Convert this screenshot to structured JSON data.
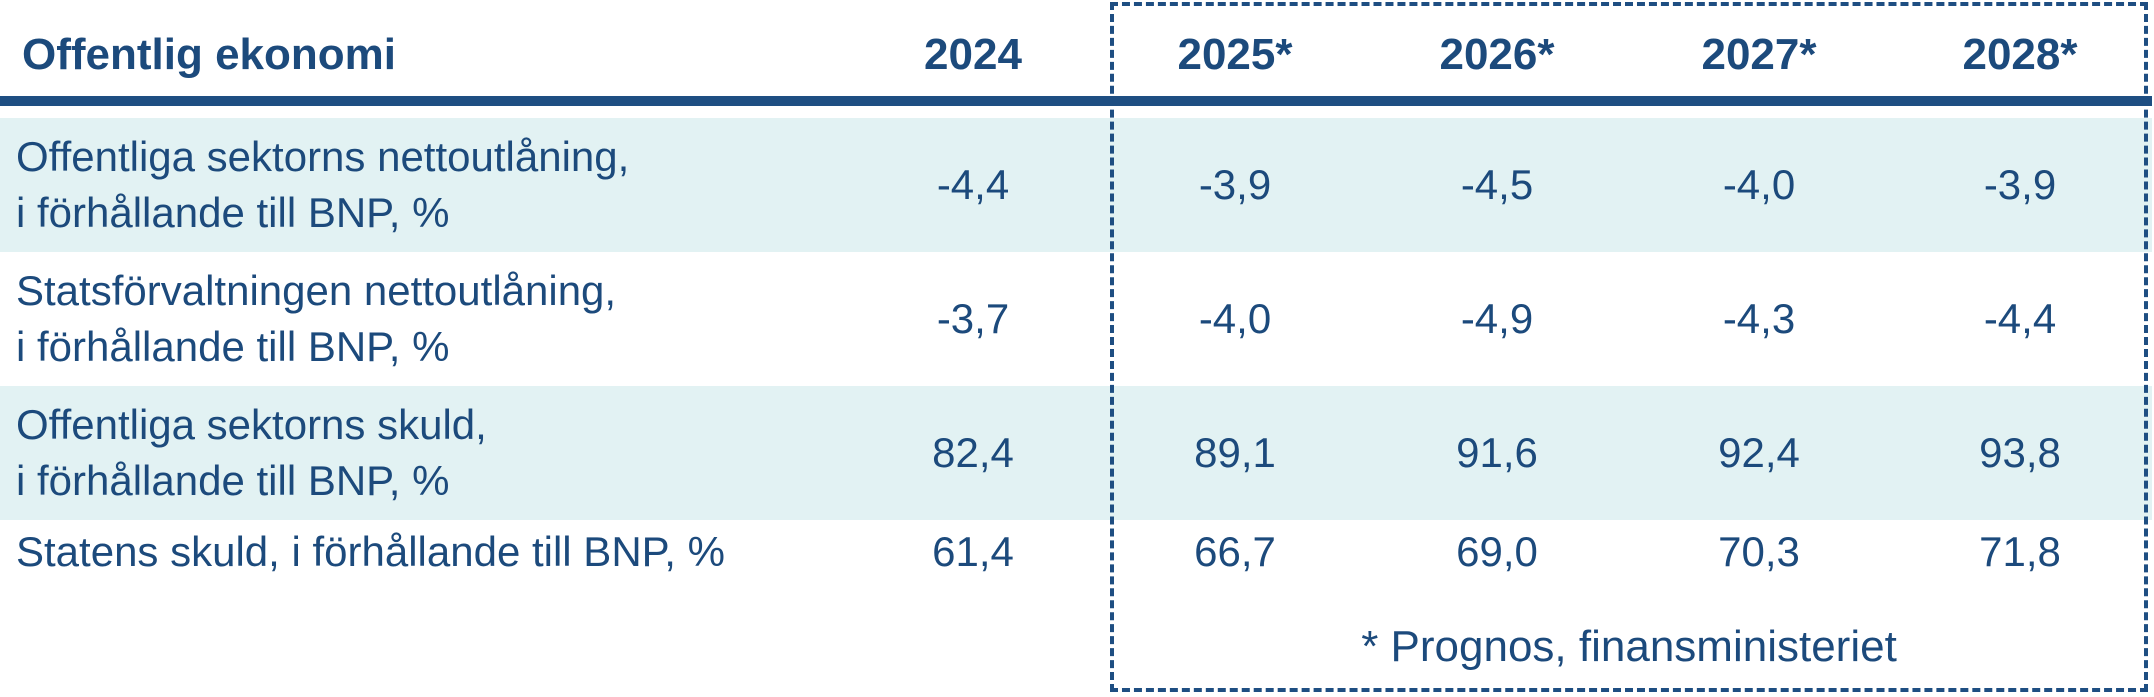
{
  "chart_data": {
    "type": "table",
    "title": "Offentlig ekonomi",
    "columns": [
      "2024",
      "2025*",
      "2026*",
      "2027*",
      "2028*"
    ],
    "rows": [
      {
        "label": "Offentliga sektorns nettoutlåning,\ni förhållande till BNP, %",
        "values": [
          "-4,4",
          "-3,9",
          "-4,5",
          "-4,0",
          "-3,9"
        ]
      },
      {
        "label": "Statsförvaltningen nettoutlåning,\ni förhållande till BNP, %",
        "values": [
          "-3,7",
          "-4,0",
          "-4,9",
          "-4,3",
          "-4,4"
        ]
      },
      {
        "label": "Offentliga sektorns skuld,\ni förhållande till BNP, %",
        "values": [
          "82,4",
          "89,1",
          "91,6",
          "92,4",
          "93,8"
        ]
      },
      {
        "label": "Statens skuld, i förhållande till BNP, %",
        "values": [
          "61,4",
          "66,7",
          "69,0",
          "70,3",
          "71,8"
        ]
      }
    ],
    "footnote": "* Prognos, finansministeriet"
  },
  "colors": {
    "text": "#1c4a7c",
    "rule": "#1e4e82",
    "row_shade": "#e2f2f3",
    "background": "#ffffff"
  }
}
